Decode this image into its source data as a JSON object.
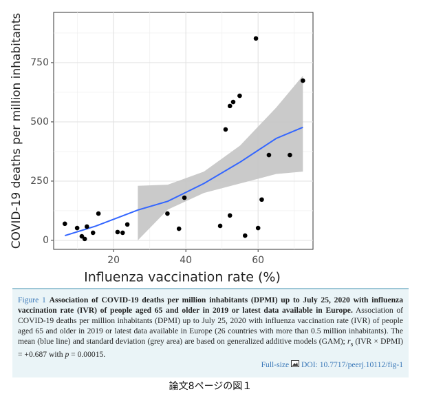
{
  "chart_data": {
    "type": "scatter",
    "xlabel": "Influenza vaccination rate (%)",
    "ylabel": "COVID-19 deaths per million inhabitants",
    "x": [
      6.5,
      9.9,
      11.2,
      12,
      12.6,
      14.3,
      15.8,
      21.1,
      22.5,
      23.8,
      34.9,
      38.1,
      39.6,
      49.5,
      51,
      52.2,
      52.2,
      53.1,
      54.9,
      56.4,
      59.4,
      60,
      61,
      63,
      68.8,
      72.4
    ],
    "values": [
      70,
      52,
      17,
      6,
      58,
      32,
      113,
      35,
      32,
      67,
      113,
      49,
      180,
      61,
      468,
      105,
      567,
      584,
      610,
      20,
      852,
      52,
      172,
      360,
      360,
      674
    ],
    "color": "#000000",
    "xlim": [
      3.4,
      75.2
    ],
    "ylim": [
      -38,
      962
    ],
    "xticks": [
      20,
      40,
      60
    ],
    "yticks": [
      0,
      250,
      500,
      750
    ],
    "minor_xticks": [
      10,
      30,
      50,
      70
    ],
    "minor_yticks": [
      125,
      375,
      625,
      875
    ],
    "grid": true,
    "fit": {
      "color": "#3366ff",
      "x": [
        6.5,
        15,
        26.7,
        35,
        45,
        55,
        65,
        72.4
      ],
      "values": [
        20,
        60,
        128,
        165,
        240,
        330,
        430,
        477
      ]
    },
    "band": {
      "color": "#c4c4c4",
      "x": [
        26.7,
        35,
        45,
        55,
        65,
        72.4
      ],
      "lower": [
        0,
        130,
        200,
        240,
        280,
        290
      ],
      "upper": [
        230,
        235,
        290,
        400,
        560,
        695
      ]
    }
  },
  "caption": {
    "label": "Figure 1",
    "title": "Association of COVID-19 deaths per million inhabitants (DPMI) up to July 25, 2020 with influenza vaccination rate (IVR) of people aged 65 and older in 2019 or latest data available in Europe.",
    "body": "Association of COVID-19 deaths per million inhabitants (DPMI) up to July 25, 2020 with influenza vaccination rate (IVR) of people aged 65 and older in 2019 or latest data available in Europe (26 countries with more than 0.5 million inhabitants). The mean (blue line) and standard deviation (grey area) are based on generalized additive models (GAM); ",
    "r": "r",
    "r_sub": "s",
    "stat": " (IVR × DPMI) = +0.687 with ",
    "p": "p",
    "p_value": " = 0.00015.",
    "full_size": "Full-size",
    "doi": "DOI: 10.7717/peerj.10112/fig-1"
  },
  "footer": "論文8ページの図１"
}
